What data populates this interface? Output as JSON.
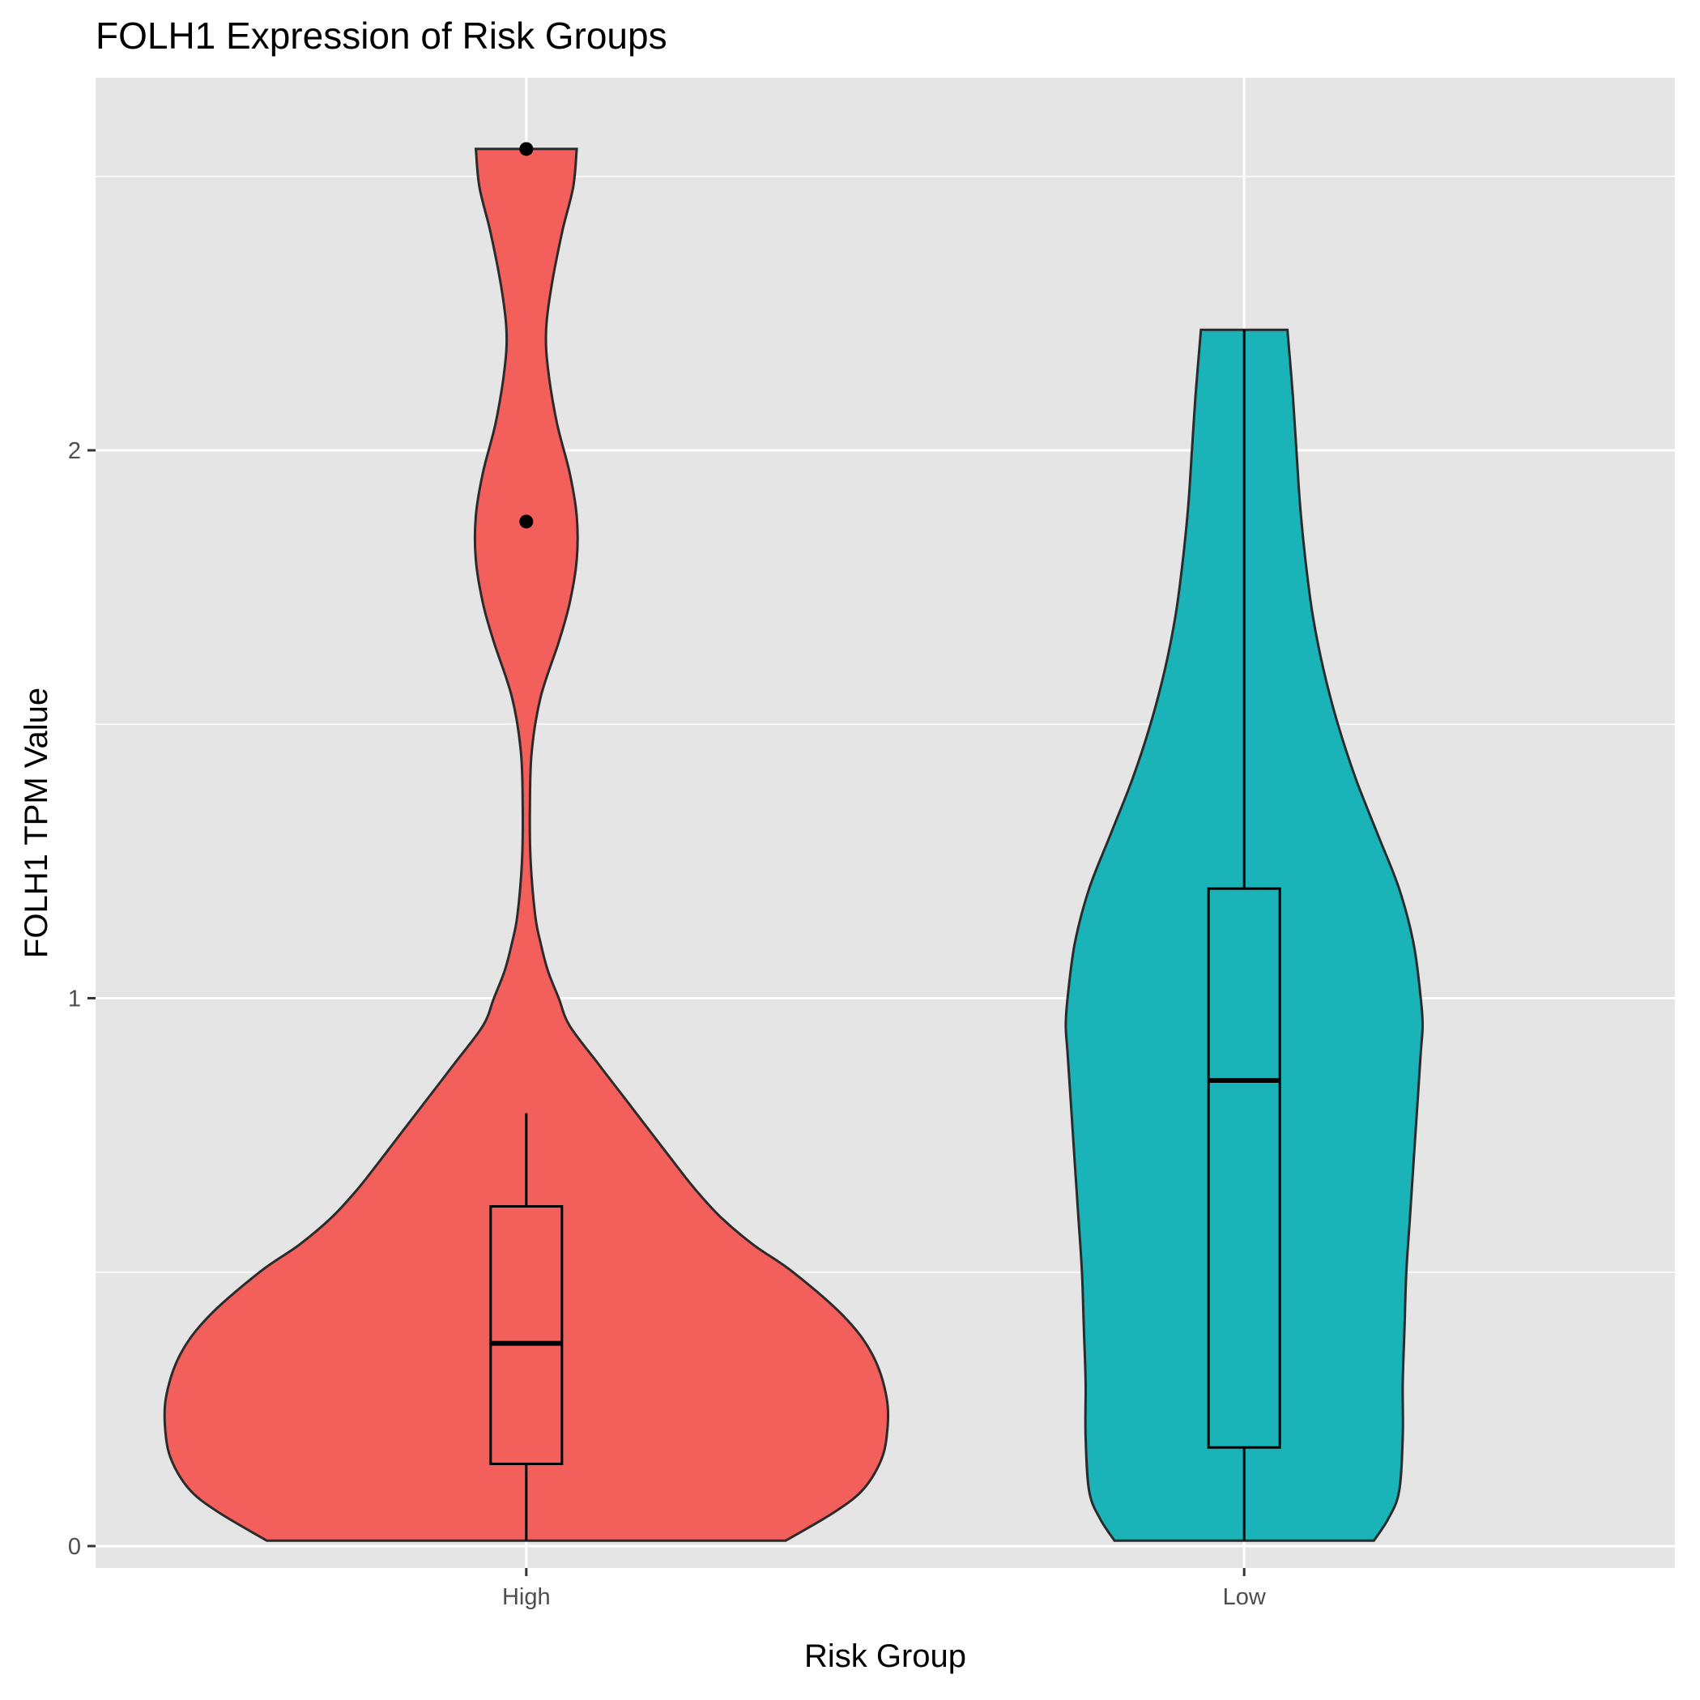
{
  "chart_data": {
    "type": "violin",
    "title": "FOLH1 Expression of Risk Groups",
    "xlabel": "Risk Group",
    "ylabel": "FOLH1 TPM Value",
    "categories": [
      "High",
      "Low"
    ],
    "ylim": [
      -0.04,
      2.68
    ],
    "y_ticks": [
      0,
      1,
      2
    ],
    "y_tick_labels": [
      "0",
      "1",
      "2"
    ],
    "grid": true,
    "legend": "none",
    "colors": {
      "High": "#F35F5B",
      "Low": "#19B3B8",
      "panel": "#E5E5E5",
      "grid": "#FFFFFF",
      "outline": "#2B2B2B"
    },
    "groups": [
      {
        "name": "High",
        "color": "#F35F5B",
        "y_min": 0.01,
        "y_max": 2.55,
        "box": {
          "whisker_low": 0.01,
          "q1": 0.15,
          "median": 0.37,
          "q3": 0.62,
          "whisker_high": 0.79
        },
        "outliers": [
          1.87,
          2.55
        ],
        "density": [
          [
            0.01,
            0.72
          ],
          [
            0.06,
            0.85
          ],
          [
            0.1,
            0.93
          ],
          [
            0.15,
            0.98
          ],
          [
            0.2,
            1.0
          ],
          [
            0.27,
            1.0
          ],
          [
            0.35,
            0.96
          ],
          [
            0.42,
            0.88
          ],
          [
            0.5,
            0.74
          ],
          [
            0.55,
            0.63
          ],
          [
            0.6,
            0.54
          ],
          [
            0.65,
            0.47
          ],
          [
            0.7,
            0.41
          ],
          [
            0.76,
            0.34
          ],
          [
            0.82,
            0.27
          ],
          [
            0.88,
            0.2
          ],
          [
            0.95,
            0.12
          ],
          [
            1.0,
            0.09
          ],
          [
            1.05,
            0.06
          ],
          [
            1.1,
            0.04
          ],
          [
            1.15,
            0.025
          ],
          [
            1.25,
            0.012
          ],
          [
            1.35,
            0.01
          ],
          [
            1.45,
            0.015
          ],
          [
            1.55,
            0.04
          ],
          [
            1.65,
            0.09
          ],
          [
            1.72,
            0.12
          ],
          [
            1.8,
            0.14
          ],
          [
            1.88,
            0.14
          ],
          [
            1.96,
            0.12
          ],
          [
            2.05,
            0.085
          ],
          [
            2.15,
            0.06
          ],
          [
            2.22,
            0.055
          ],
          [
            2.3,
            0.07
          ],
          [
            2.4,
            0.1
          ],
          [
            2.48,
            0.13
          ],
          [
            2.55,
            0.14
          ]
        ]
      },
      {
        "name": "Low",
        "color": "#19B3B8",
        "y_min": 0.01,
        "y_max": 2.22,
        "box": {
          "whisker_low": 0.01,
          "q1": 0.18,
          "median": 0.85,
          "q3": 1.2,
          "whisker_high": 2.22
        },
        "outliers": [],
        "density": [
          [
            0.01,
            0.36
          ],
          [
            0.05,
            0.4
          ],
          [
            0.1,
            0.43
          ],
          [
            0.2,
            0.44
          ],
          [
            0.3,
            0.44
          ],
          [
            0.4,
            0.445
          ],
          [
            0.5,
            0.45
          ],
          [
            0.6,
            0.46
          ],
          [
            0.7,
            0.47
          ],
          [
            0.8,
            0.48
          ],
          [
            0.9,
            0.49
          ],
          [
            0.95,
            0.495
          ],
          [
            1.0,
            0.49
          ],
          [
            1.1,
            0.47
          ],
          [
            1.2,
            0.43
          ],
          [
            1.3,
            0.37
          ],
          [
            1.4,
            0.31
          ],
          [
            1.5,
            0.26
          ],
          [
            1.6,
            0.22
          ],
          [
            1.7,
            0.19
          ],
          [
            1.8,
            0.17
          ],
          [
            1.9,
            0.155
          ],
          [
            2.0,
            0.145
          ],
          [
            2.1,
            0.135
          ],
          [
            2.22,
            0.12
          ]
        ]
      }
    ]
  }
}
